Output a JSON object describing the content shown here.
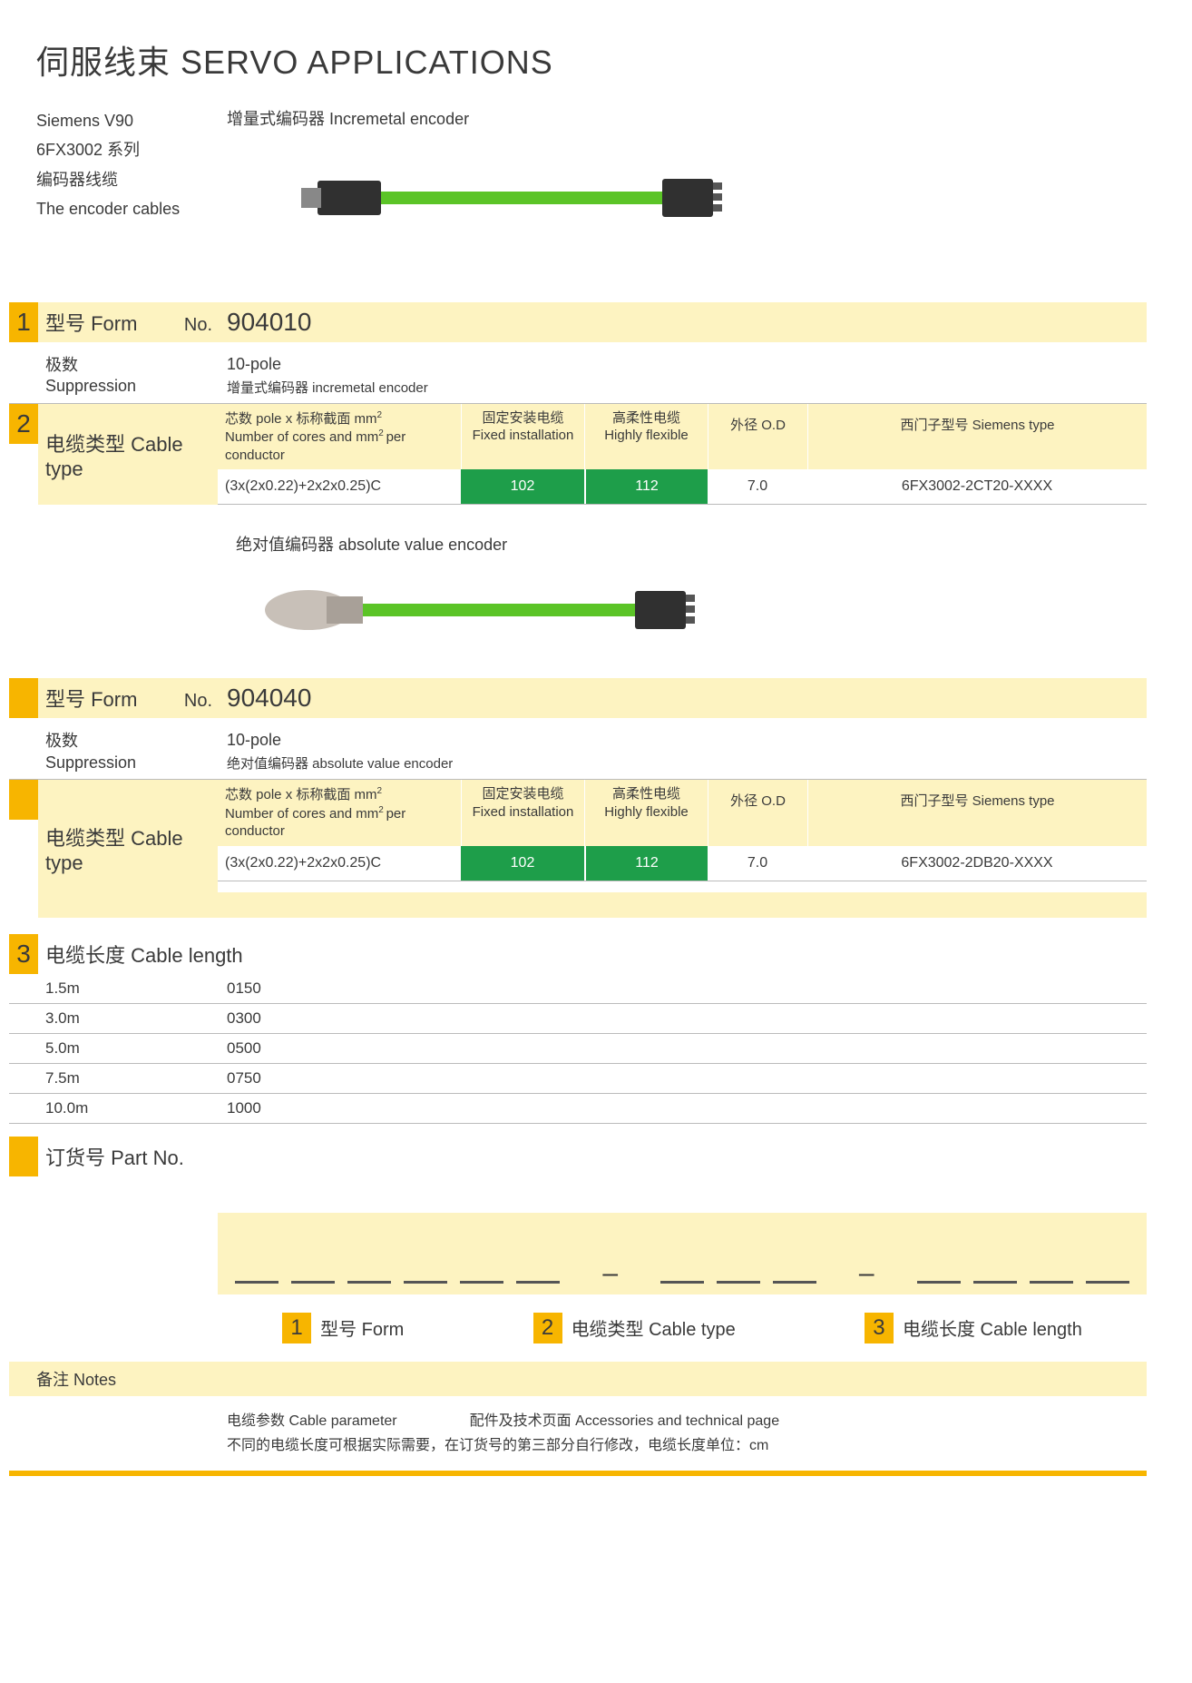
{
  "title": "伺服线束  SERVO APPLICATIONS",
  "intro": {
    "l1": "Siemens  V90",
    "l2": "6FX3002 系列",
    "l3": "编码器线缆",
    "l4": "The encoder cables",
    "enc1": "增量式编码器 Incremetal encoder"
  },
  "colors": {
    "yellow": "#f7b500",
    "paleyellow": "#fdf3c1",
    "green": "#1e9e4a",
    "cable": "#5bc427",
    "conn": "#303030",
    "conn2": "#a8a098"
  },
  "sec1": {
    "form_label": "型号 Form",
    "no": "No.",
    "form_value": "904010",
    "sup_cn": "极数",
    "sup_en": "Suppression",
    "sup_val": "10-pole",
    "sup_val2": "增量式编码器 incremetal encoder",
    "ct_label": "电缆类型 Cable type",
    "h1a": "芯数 pole x 标称截面 mm",
    "h1b": "Number of cores and mm",
    "h1c": "per conductor",
    "h2a": "固定安装电缆",
    "h2b": "Fixed installation",
    "h3a": "高柔性电缆",
    "h3b": "Highly flexible",
    "h4": "外径 O.D",
    "h5": "西门子型号 Siemens type",
    "r": {
      "cores": "(3x(2x0.22)+2x2x0.25)C",
      "fixed": "102",
      "flex": "112",
      "od": "7.0",
      "stype": "6FX3002-2CT20-XXXX"
    }
  },
  "enc2": "绝对值编码器 absolute value encoder",
  "sec2": {
    "form_value": "904040",
    "sup_val": "10-pole",
    "sup_val2": "绝对值编码器 absolute value encoder",
    "r": {
      "cores": "(3x(2x0.22)+2x2x0.25)C",
      "fixed": "102",
      "flex": "112",
      "od": "7.0",
      "stype": "6FX3002-2DB20-XXXX"
    }
  },
  "sec3": {
    "label": "电缆长度 Cable length",
    "rows": [
      [
        "1.5m",
        "0150"
      ],
      [
        "3.0m",
        "0300"
      ],
      [
        "5.0m",
        "0500"
      ],
      [
        "7.5m",
        "0750"
      ],
      [
        "10.0m",
        "1000"
      ]
    ]
  },
  "part": {
    "label": "订货号 Part No."
  },
  "legend": {
    "l1": "型号 Form",
    "l2": "电缆类型 Cable type",
    "l3": "电缆长度 Cable length"
  },
  "notes": {
    "hdr": "备注 Notes",
    "a": "电缆参数  Cable parameter",
    "b": "配件及技术页面  Accessories and technical page",
    "c": "不同的电缆长度可根据实际需要，在订货号的第三部分自行修改，电缆长度单位：cm"
  }
}
